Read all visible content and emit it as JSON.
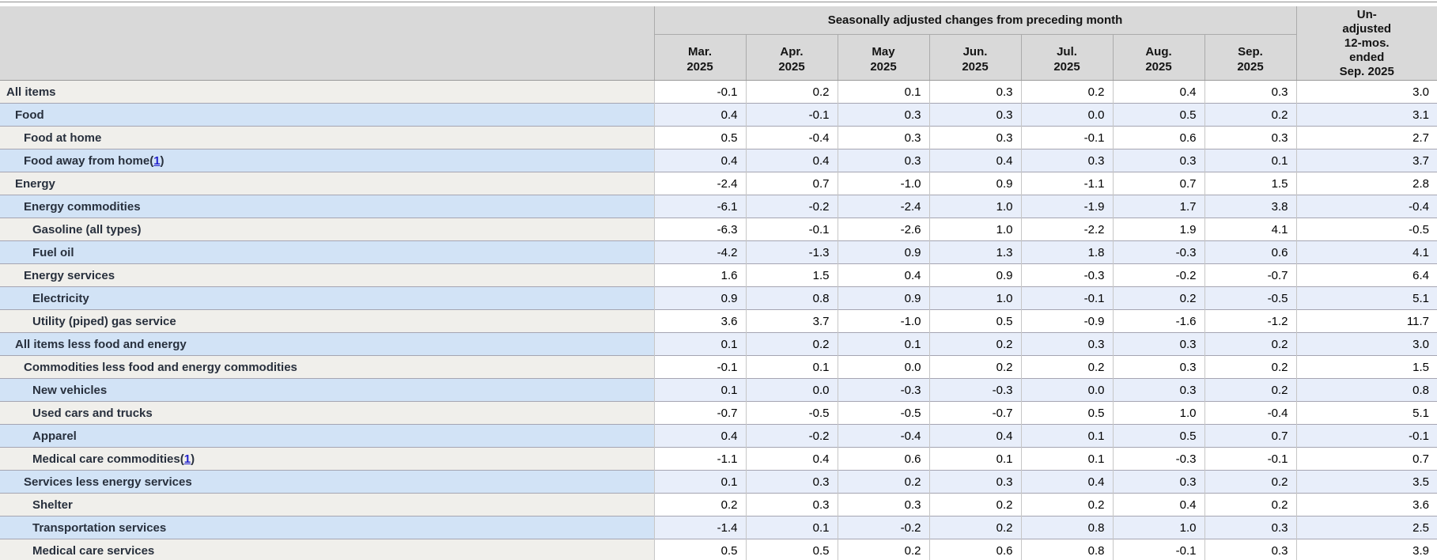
{
  "table": {
    "group_header": "Seasonally adjusted changes from preceding month",
    "unadjusted_header_lines": [
      "Un-",
      "adjusted",
      "12-mos.",
      "ended",
      "Sep. 2025"
    ],
    "month_headers": [
      {
        "month": "Mar.",
        "year": "2025"
      },
      {
        "month": "Apr.",
        "year": "2025"
      },
      {
        "month": "May",
        "year": "2025"
      },
      {
        "month": "Jun.",
        "year": "2025"
      },
      {
        "month": "Jul.",
        "year": "2025"
      },
      {
        "month": "Aug.",
        "year": "2025"
      },
      {
        "month": "Sep.",
        "year": "2025"
      }
    ],
    "rows": [
      {
        "label": "All items",
        "indent": 0,
        "footnote": null,
        "values": [
          "-0.1",
          "0.2",
          "0.1",
          "0.3",
          "0.2",
          "0.4",
          "0.3"
        ],
        "unadjusted": "3.0"
      },
      {
        "label": "Food",
        "indent": 1,
        "footnote": null,
        "values": [
          "0.4",
          "-0.1",
          "0.3",
          "0.3",
          "0.0",
          "0.5",
          "0.2"
        ],
        "unadjusted": "3.1"
      },
      {
        "label": "Food at home",
        "indent": 2,
        "footnote": null,
        "values": [
          "0.5",
          "-0.4",
          "0.3",
          "0.3",
          "-0.1",
          "0.6",
          "0.3"
        ],
        "unadjusted": "2.7"
      },
      {
        "label": "Food away from home",
        "indent": 2,
        "footnote": "1",
        "values": [
          "0.4",
          "0.4",
          "0.3",
          "0.4",
          "0.3",
          "0.3",
          "0.1"
        ],
        "unadjusted": "3.7"
      },
      {
        "label": "Energy",
        "indent": 1,
        "footnote": null,
        "values": [
          "-2.4",
          "0.7",
          "-1.0",
          "0.9",
          "-1.1",
          "0.7",
          "1.5"
        ],
        "unadjusted": "2.8"
      },
      {
        "label": "Energy commodities",
        "indent": 2,
        "footnote": null,
        "values": [
          "-6.1",
          "-0.2",
          "-2.4",
          "1.0",
          "-1.9",
          "1.7",
          "3.8"
        ],
        "unadjusted": "-0.4"
      },
      {
        "label": "Gasoline (all types)",
        "indent": 3,
        "footnote": null,
        "values": [
          "-6.3",
          "-0.1",
          "-2.6",
          "1.0",
          "-2.2",
          "1.9",
          "4.1"
        ],
        "unadjusted": "-0.5"
      },
      {
        "label": "Fuel oil",
        "indent": 3,
        "footnote": null,
        "values": [
          "-4.2",
          "-1.3",
          "0.9",
          "1.3",
          "1.8",
          "-0.3",
          "0.6"
        ],
        "unadjusted": "4.1"
      },
      {
        "label": "Energy services",
        "indent": 2,
        "footnote": null,
        "values": [
          "1.6",
          "1.5",
          "0.4",
          "0.9",
          "-0.3",
          "-0.2",
          "-0.7"
        ],
        "unadjusted": "6.4"
      },
      {
        "label": "Electricity",
        "indent": 3,
        "footnote": null,
        "values": [
          "0.9",
          "0.8",
          "0.9",
          "1.0",
          "-0.1",
          "0.2",
          "-0.5"
        ],
        "unadjusted": "5.1"
      },
      {
        "label": "Utility (piped) gas service",
        "indent": 3,
        "footnote": null,
        "values": [
          "3.6",
          "3.7",
          "-1.0",
          "0.5",
          "-0.9",
          "-1.6",
          "-1.2"
        ],
        "unadjusted": "11.7"
      },
      {
        "label": "All items less food and energy",
        "indent": 1,
        "footnote": null,
        "values": [
          "0.1",
          "0.2",
          "0.1",
          "0.2",
          "0.3",
          "0.3",
          "0.2"
        ],
        "unadjusted": "3.0"
      },
      {
        "label": "Commodities less food and energy commodities",
        "indent": 2,
        "footnote": null,
        "values": [
          "-0.1",
          "0.1",
          "0.0",
          "0.2",
          "0.2",
          "0.3",
          "0.2"
        ],
        "unadjusted": "1.5"
      },
      {
        "label": "New vehicles",
        "indent": 3,
        "footnote": null,
        "values": [
          "0.1",
          "0.0",
          "-0.3",
          "-0.3",
          "0.0",
          "0.3",
          "0.2"
        ],
        "unadjusted": "0.8"
      },
      {
        "label": "Used cars and trucks",
        "indent": 3,
        "footnote": null,
        "values": [
          "-0.7",
          "-0.5",
          "-0.5",
          "-0.7",
          "0.5",
          "1.0",
          "-0.4"
        ],
        "unadjusted": "5.1"
      },
      {
        "label": "Apparel",
        "indent": 3,
        "footnote": null,
        "values": [
          "0.4",
          "-0.2",
          "-0.4",
          "0.4",
          "0.1",
          "0.5",
          "0.7"
        ],
        "unadjusted": "-0.1"
      },
      {
        "label": "Medical care commodities",
        "indent": 3,
        "footnote": "1",
        "values": [
          "-1.1",
          "0.4",
          "0.6",
          "0.1",
          "0.1",
          "-0.3",
          "-0.1"
        ],
        "unadjusted": "0.7"
      },
      {
        "label": "Services less energy services",
        "indent": 2,
        "footnote": null,
        "values": [
          "0.1",
          "0.3",
          "0.2",
          "0.3",
          "0.4",
          "0.3",
          "0.2"
        ],
        "unadjusted": "3.5"
      },
      {
        "label": "Shelter",
        "indent": 3,
        "footnote": null,
        "values": [
          "0.2",
          "0.3",
          "0.3",
          "0.2",
          "0.2",
          "0.4",
          "0.2"
        ],
        "unadjusted": "3.6"
      },
      {
        "label": "Transportation services",
        "indent": 3,
        "footnote": null,
        "values": [
          "-1.4",
          "0.1",
          "-0.2",
          "0.2",
          "0.8",
          "1.0",
          "0.3"
        ],
        "unadjusted": "2.5"
      },
      {
        "label": "Medical care services",
        "indent": 3,
        "footnote": null,
        "values": [
          "0.5",
          "0.5",
          "0.2",
          "0.6",
          "0.8",
          "-0.1",
          "0.3"
        ],
        "unadjusted": "3.9"
      }
    ]
  },
  "colors": {
    "header_bg": "#d9d9d9",
    "gray_row_label_bg": "#f0efeb",
    "gray_row_data_bg": "#ffffff",
    "blue_row_label_bg": "#d2e3f6",
    "blue_row_data_bg": "#e8eefa",
    "row_border": "#a5a5b2",
    "footnote_link": "#2222cc",
    "label_text": "#28303d"
  }
}
